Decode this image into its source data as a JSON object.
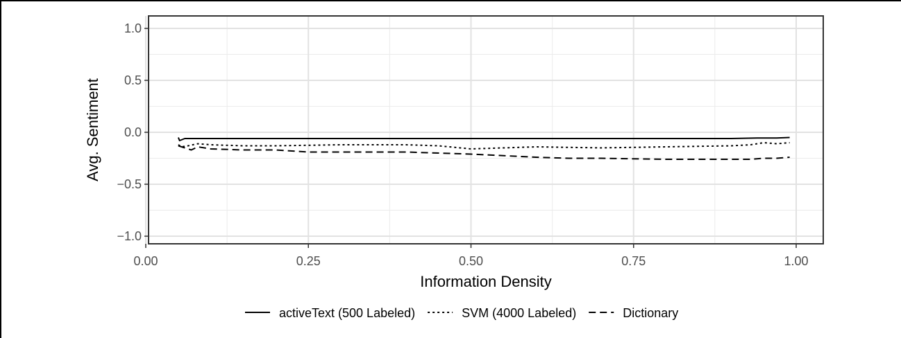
{
  "chart_data": {
    "type": "line",
    "title": "",
    "xlabel": "Information Density",
    "ylabel": "Avg. Sentiment",
    "xlim": [
      0.0,
      1.0
    ],
    "ylim": [
      -1.0,
      1.0
    ],
    "x_ticks": [
      "0.00",
      "0.25",
      "0.50",
      "0.75",
      "1.00"
    ],
    "y_ticks": [
      "1.0",
      "0.5",
      "0.0",
      "−0.5",
      "−1.0"
    ],
    "x_tick_values": [
      0.0,
      0.25,
      0.5,
      0.75,
      1.0
    ],
    "y_tick_values": [
      1.0,
      0.5,
      0.0,
      -0.5,
      -1.0
    ],
    "grid": true,
    "legend_position": "bottom",
    "series": [
      {
        "name": "activeText (500 Labeled)",
        "linestyle": "solid",
        "color": "#000000",
        "x": [
          0.05,
          0.052,
          0.06,
          0.08,
          0.1,
          0.15,
          0.2,
          0.3,
          0.4,
          0.5,
          0.6,
          0.7,
          0.8,
          0.9,
          0.94,
          0.97,
          0.99
        ],
        "y": [
          -0.05,
          -0.08,
          -0.06,
          -0.06,
          -0.06,
          -0.06,
          -0.06,
          -0.06,
          -0.06,
          -0.06,
          -0.06,
          -0.06,
          -0.06,
          -0.06,
          -0.055,
          -0.055,
          -0.05
        ]
      },
      {
        "name": "SVM (4000 Labeled)",
        "linestyle": "dotted",
        "color": "#000000",
        "x": [
          0.05,
          0.055,
          0.065,
          0.08,
          0.1,
          0.15,
          0.2,
          0.3,
          0.4,
          0.45,
          0.5,
          0.55,
          0.6,
          0.7,
          0.8,
          0.9,
          0.93,
          0.95,
          0.97,
          0.99
        ],
        "y": [
          -0.12,
          -0.14,
          -0.13,
          -0.11,
          -0.12,
          -0.13,
          -0.13,
          -0.12,
          -0.12,
          -0.13,
          -0.16,
          -0.15,
          -0.14,
          -0.15,
          -0.14,
          -0.13,
          -0.12,
          -0.1,
          -0.11,
          -0.1
        ]
      },
      {
        "name": "Dictionary",
        "linestyle": "dashed",
        "color": "#000000",
        "x": [
          0.05,
          0.06,
          0.07,
          0.08,
          0.1,
          0.15,
          0.2,
          0.25,
          0.3,
          0.4,
          0.5,
          0.6,
          0.65,
          0.7,
          0.8,
          0.85,
          0.9,
          0.93,
          0.95,
          0.97,
          0.99
        ],
        "y": [
          -0.13,
          -0.15,
          -0.17,
          -0.14,
          -0.16,
          -0.17,
          -0.17,
          -0.19,
          -0.19,
          -0.19,
          -0.21,
          -0.24,
          -0.25,
          -0.25,
          -0.26,
          -0.26,
          -0.26,
          -0.26,
          -0.25,
          -0.25,
          -0.24
        ]
      }
    ]
  }
}
